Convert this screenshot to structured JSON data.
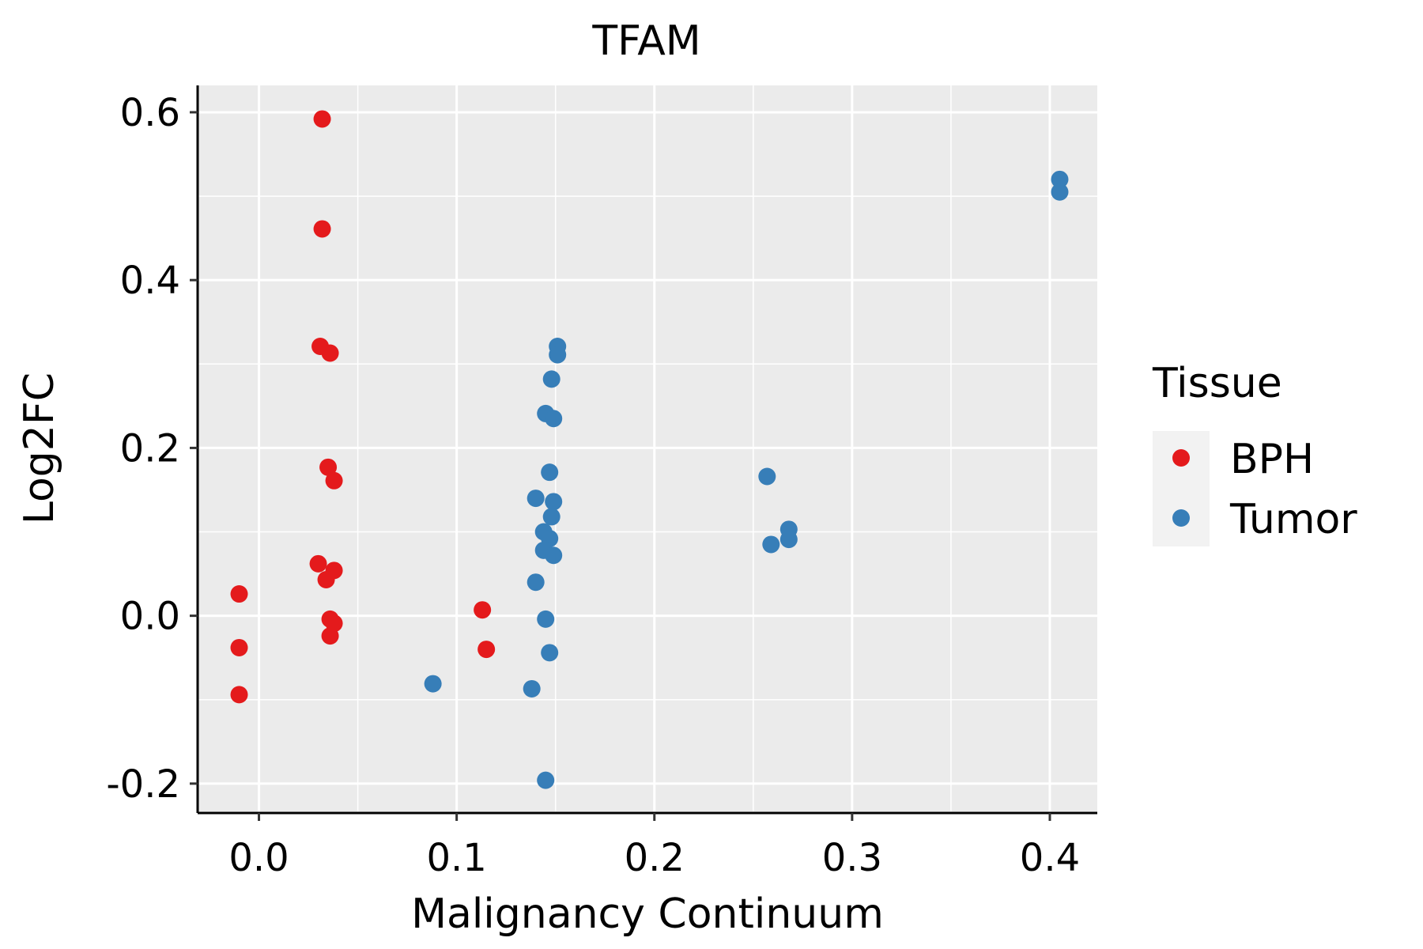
{
  "chart_data": {
    "type": "scatter",
    "title": "TFAM",
    "xlabel": "Malignancy Continuum",
    "ylabel": "Log2FC",
    "xlim": [
      -0.031,
      0.424
    ],
    "ylim": [
      -0.235,
      0.632
    ],
    "x_ticks": [
      0.0,
      0.1,
      0.2,
      0.3,
      0.4
    ],
    "x_tick_labels": [
      "0.0",
      "0.1",
      "0.2",
      "0.3",
      "0.4"
    ],
    "y_ticks": [
      -0.2,
      0.0,
      0.2,
      0.4,
      0.6
    ],
    "y_tick_labels": [
      "-0.2",
      "0.0",
      "0.2",
      "0.4",
      "0.6"
    ],
    "grid": true,
    "legend": {
      "title": "Tissue",
      "position": "right"
    },
    "series": [
      {
        "name": "BPH",
        "color": "#E41A1C",
        "points": [
          {
            "x": -0.01,
            "y": 0.026
          },
          {
            "x": -0.01,
            "y": -0.038
          },
          {
            "x": -0.01,
            "y": -0.094
          },
          {
            "x": 0.032,
            "y": 0.592
          },
          {
            "x": 0.032,
            "y": 0.461
          },
          {
            "x": 0.031,
            "y": 0.321
          },
          {
            "x": 0.036,
            "y": 0.313
          },
          {
            "x": 0.035,
            "y": 0.177
          },
          {
            "x": 0.038,
            "y": 0.161
          },
          {
            "x": 0.03,
            "y": 0.062
          },
          {
            "x": 0.038,
            "y": 0.054
          },
          {
            "x": 0.034,
            "y": 0.043
          },
          {
            "x": 0.036,
            "y": -0.004
          },
          {
            "x": 0.038,
            "y": -0.009
          },
          {
            "x": 0.036,
            "y": -0.024
          },
          {
            "x": 0.113,
            "y": 0.007
          },
          {
            "x": 0.115,
            "y": -0.04
          }
        ]
      },
      {
        "name": "Tumor",
        "color": "#377EB8",
        "points": [
          {
            "x": 0.405,
            "y": 0.52
          },
          {
            "x": 0.405,
            "y": 0.505
          },
          {
            "x": 0.151,
            "y": 0.321
          },
          {
            "x": 0.151,
            "y": 0.311
          },
          {
            "x": 0.148,
            "y": 0.282
          },
          {
            "x": 0.145,
            "y": 0.241
          },
          {
            "x": 0.149,
            "y": 0.235
          },
          {
            "x": 0.147,
            "y": 0.171
          },
          {
            "x": 0.14,
            "y": 0.14
          },
          {
            "x": 0.149,
            "y": 0.136
          },
          {
            "x": 0.148,
            "y": 0.118
          },
          {
            "x": 0.144,
            "y": 0.1
          },
          {
            "x": 0.147,
            "y": 0.092
          },
          {
            "x": 0.144,
            "y": 0.078
          },
          {
            "x": 0.149,
            "y": 0.072
          },
          {
            "x": 0.14,
            "y": 0.04
          },
          {
            "x": 0.145,
            "y": -0.004
          },
          {
            "x": 0.147,
            "y": -0.044
          },
          {
            "x": 0.088,
            "y": -0.081
          },
          {
            "x": 0.138,
            "y": -0.087
          },
          {
            "x": 0.145,
            "y": -0.196
          },
          {
            "x": 0.257,
            "y": 0.166
          },
          {
            "x": 0.268,
            "y": 0.103
          },
          {
            "x": 0.268,
            "y": 0.091
          },
          {
            "x": 0.259,
            "y": 0.085
          }
        ]
      }
    ]
  }
}
